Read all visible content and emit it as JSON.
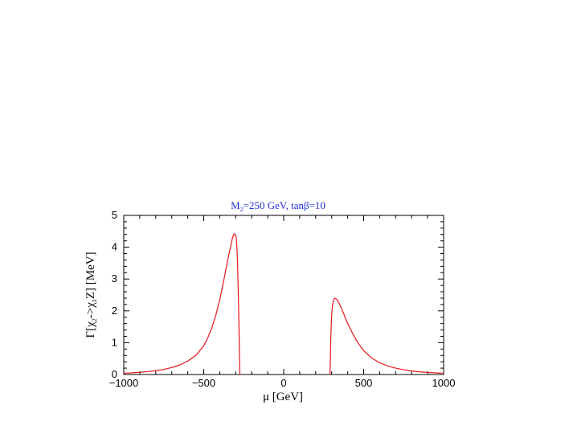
{
  "chart_data": {
    "type": "line",
    "title_parts": {
      "M": "M",
      "sub2": "2",
      "rest1": "=250 GeV, tan",
      "beta": "β",
      "rest2": "=10"
    },
    "xlabel_parts": {
      "mu": "μ",
      "unit": " [GeV]"
    },
    "ylabel_parts": {
      "gamma": "Γ[χ",
      "sub2": "2",
      "arrow": "->χ",
      "sub1": "1",
      "rest": "Z]  [MeV]"
    },
    "xlim": [
      -1000,
      1000
    ],
    "ylim": [
      0,
      5
    ],
    "x_ticks": [
      "−1000",
      "−500",
      "0",
      "500",
      "1000"
    ],
    "x_tick_values": [
      -1000,
      -500,
      0,
      500,
      1000
    ],
    "y_ticks": [
      "0",
      "1",
      "2",
      "3",
      "4",
      "5"
    ],
    "y_tick_values": [
      0,
      1,
      2,
      3,
      4,
      5
    ],
    "grid": false,
    "colors": {
      "line": "#e8141b",
      "title": "#1f2fd6",
      "axis": "#000000"
    },
    "series": [
      {
        "x": [
          -1000,
          -950,
          -900,
          -850,
          -800,
          -750,
          -700,
          -650,
          -600,
          -550,
          -500,
          -475,
          -450,
          -425,
          -400,
          -375,
          -350,
          -335,
          -320,
          -310,
          -302,
          -296,
          -292,
          -288,
          -284,
          -280,
          -277,
          -275,
          -274
        ],
        "y": [
          0.04,
          0.05,
          0.07,
          0.09,
          0.12,
          0.16,
          0.22,
          0.3,
          0.42,
          0.6,
          0.9,
          1.15,
          1.45,
          1.85,
          2.35,
          2.95,
          3.6,
          3.95,
          4.3,
          4.42,
          4.4,
          4.25,
          3.95,
          3.4,
          2.6,
          1.6,
          0.8,
          0.25,
          0
        ]
      },
      {
        "x": [
          290,
          292,
          294,
          296,
          298,
          300,
          305,
          310,
          315,
          320,
          330,
          340,
          360,
          380,
          400,
          430,
          460,
          500,
          550,
          600,
          650,
          700,
          750,
          800,
          850,
          900,
          950,
          1000
        ],
        "y": [
          0,
          0.6,
          1.0,
          1.35,
          1.65,
          1.9,
          2.15,
          2.3,
          2.37,
          2.4,
          2.37,
          2.3,
          2.1,
          1.85,
          1.6,
          1.3,
          1.03,
          0.75,
          0.52,
          0.37,
          0.27,
          0.2,
          0.15,
          0.11,
          0.085,
          0.065,
          0.05,
          0.04
        ]
      }
    ]
  }
}
